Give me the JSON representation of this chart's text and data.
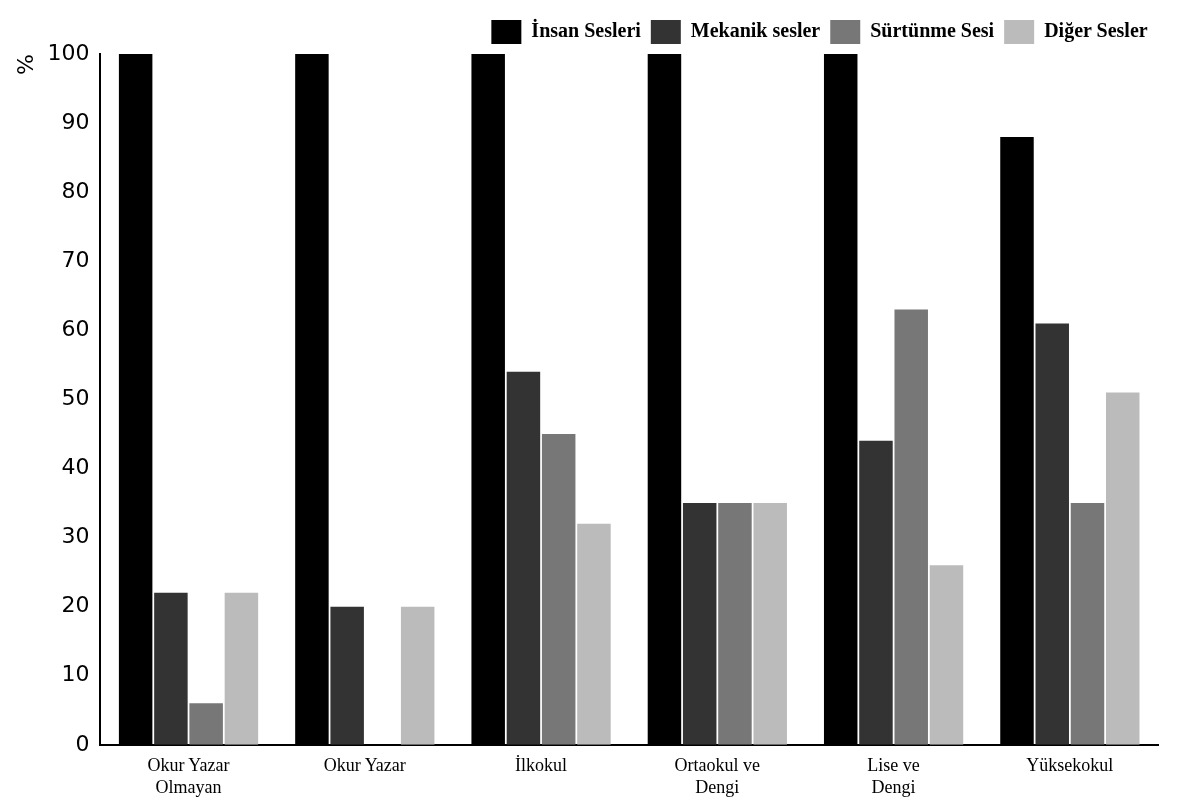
{
  "chart_data": {
    "type": "bar",
    "ylabel": "%",
    "categories": [
      "Okur Yazar Olmayan",
      "Okur Yazar",
      "İlkokul",
      "Ortaokul ve Dengi",
      "Lise ve Dengi",
      "Yüksekokul"
    ],
    "series": [
      {
        "name": "İnsan Sesleri",
        "color": "#000000",
        "values": [
          100,
          100,
          100,
          100,
          100,
          88
        ]
      },
      {
        "name": "Mekanik sesler",
        "color": "#333333",
        "values": [
          22,
          20,
          54,
          35,
          44,
          61
        ]
      },
      {
        "name": "Sürtünme Sesi",
        "color": "#777777",
        "values": [
          6,
          0,
          45,
          35,
          63,
          35
        ]
      },
      {
        "name": "Diğer Sesler",
        "color": "#bbbbbb",
        "values": [
          22,
          20,
          32,
          35,
          26,
          51
        ]
      }
    ],
    "ylim": [
      0,
      100
    ],
    "yticks": [
      0,
      10,
      20,
      30,
      40,
      50,
      60,
      70,
      80,
      90,
      100
    ],
    "grid": false,
    "legend": "top right"
  }
}
